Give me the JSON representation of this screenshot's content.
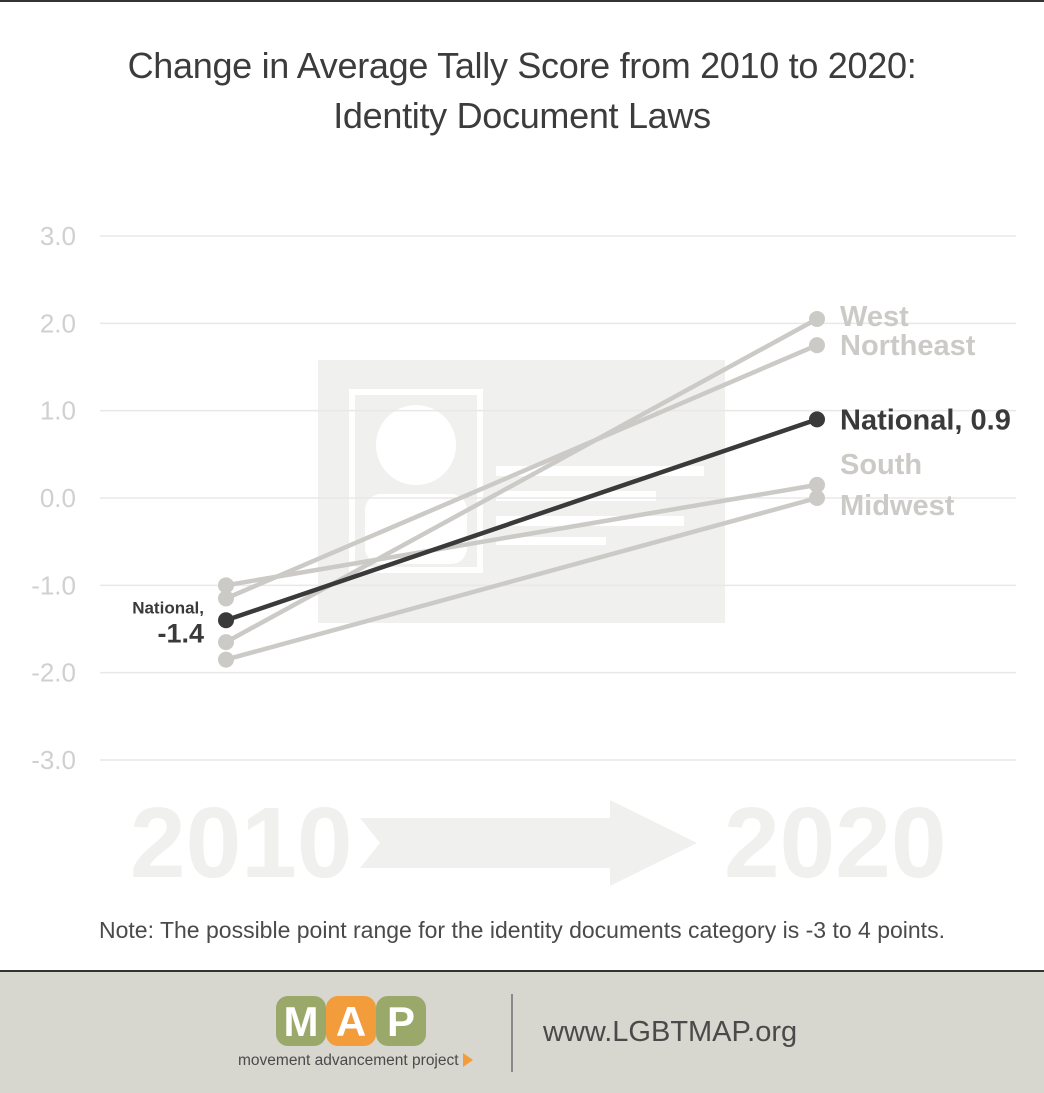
{
  "title": {
    "line1": "Change in Average Tally Score from 2010 to 2020:",
    "line2": "Identity Document Laws"
  },
  "colors": {
    "national": "#3a3a3a",
    "region": "#cccac6",
    "axis_text": "#d0d0d0",
    "grid": "#e8e8e8",
    "watermark": "#f0f0ee",
    "footer_bg": "#d7d7cf",
    "logo_green": "#9aa86a",
    "logo_orange": "#f39c3c"
  },
  "chart_data": {
    "type": "line",
    "title": "Change in Average Tally Score from 2010 to 2020: Identity Document Laws",
    "x": [
      "2010",
      "2020"
    ],
    "ylim": [
      -3,
      3
    ],
    "yticks": [
      "3.0",
      "2.0",
      "1.0",
      "0.0",
      "-1.0",
      "-2.0",
      "-3.0"
    ],
    "grid": true,
    "series": [
      {
        "name": "West",
        "values": [
          -1.65,
          2.05
        ],
        "highlight": false
      },
      {
        "name": "Northeast",
        "values": [
          -1.15,
          1.75
        ],
        "highlight": false
      },
      {
        "name": "National",
        "values": [
          -1.4,
          0.9
        ],
        "highlight": true
      },
      {
        "name": "South",
        "values": [
          -1.0,
          0.15
        ],
        "highlight": false
      },
      {
        "name": "Midwest",
        "values": [
          -1.85,
          0.0
        ],
        "highlight": false
      }
    ],
    "labels_end": {
      "West": "West",
      "Northeast": "Northeast",
      "National": "National, 0.9",
      "South": "South",
      "Midwest": "Midwest"
    },
    "label_start_national": {
      "line1": "National,",
      "line2": "-1.4"
    },
    "watermark_years": {
      "start": "2010",
      "end": "2020"
    }
  },
  "note": "Note: The possible point range for the identity documents category is -3 to 4 points.",
  "footer": {
    "logo_letters": [
      "M",
      "A",
      "P"
    ],
    "tagline": "movement advancement project",
    "url": "www.LGBTMAP.org"
  }
}
